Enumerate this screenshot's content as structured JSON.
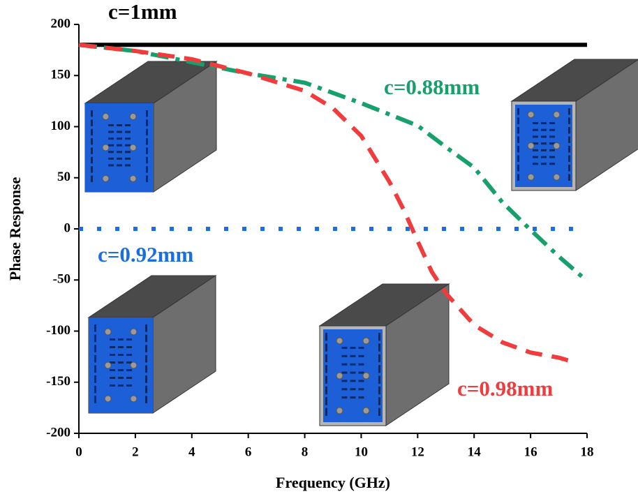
{
  "chart_data": {
    "type": "line",
    "x_label": "Frequency (GHz)",
    "y_label": "Phase Response",
    "xlim": [
      0,
      18
    ],
    "xticks": [
      0,
      2,
      4,
      6,
      8,
      10,
      12,
      14,
      16,
      18
    ],
    "ylim": [
      -200,
      200
    ],
    "yticks": [
      -200,
      -150,
      -100,
      -50,
      0,
      50,
      100,
      150,
      200
    ],
    "series": [
      {
        "name": "c=1mm",
        "color": "#000000",
        "x": [
          0,
          18
        ],
        "values": [
          180,
          180
        ]
      },
      {
        "name": "c=0.88mm",
        "color": "#17a06c",
        "x": [
          0,
          2,
          4,
          6,
          8,
          10,
          12,
          13,
          14,
          15,
          16,
          17,
          18
        ],
        "values": [
          180,
          174,
          163,
          152,
          143,
          123,
          101,
          80,
          60,
          26,
          -1,
          -27,
          -51
        ]
      },
      {
        "name": "c=0.92mm",
        "color": "#1a6fe0",
        "x": [
          0,
          18
        ],
        "values": [
          0,
          0
        ]
      },
      {
        "name": "c=0.98mm",
        "color": "#f03c3c",
        "x": [
          0,
          2,
          4,
          6,
          8,
          9,
          10,
          11,
          11.5,
          12,
          12.5,
          13,
          14,
          15,
          16,
          17,
          17.5
        ],
        "values": [
          180,
          174,
          166,
          152,
          135,
          118,
          91,
          46,
          19,
          -12,
          -42,
          -63,
          -94,
          -111,
          -121,
          -126,
          -130
        ]
      }
    ]
  }
}
